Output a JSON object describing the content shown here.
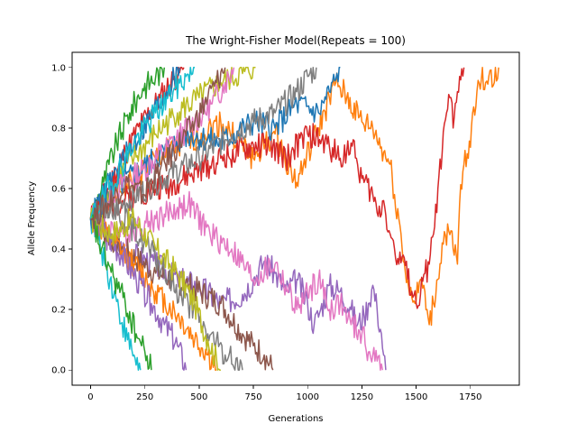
{
  "chart_data": {
    "type": "line",
    "title": "The Wright-Fisher Model(Repeats = 100)",
    "xlabel": "Generations",
    "ylabel": "Allele Frequency",
    "xlim": [
      -85,
      1975
    ],
    "ylim": [
      -0.05,
      1.05
    ],
    "xticks": [
      0,
      250,
      500,
      750,
      1000,
      1250,
      1500,
      1750
    ],
    "yticks": [
      0.0,
      0.2,
      0.4,
      0.6,
      0.8,
      1.0
    ],
    "xtick_labels": [
      "0",
      "250",
      "500",
      "750",
      "1000",
      "1250",
      "1500",
      "1750"
    ],
    "ytick_labels": [
      "0.0",
      "0.2",
      "0.4",
      "0.6",
      "0.8",
      "1.0"
    ],
    "grid": false,
    "legend": "none",
    "palette": [
      "#1f77b4",
      "#ff7f0e",
      "#2ca02c",
      "#d62728",
      "#9467bd",
      "#8c564b",
      "#e377c2",
      "#7f7f7f",
      "#bcbd22",
      "#17becf"
    ],
    "series": [
      {
        "color": "#ff7f0e",
        "values": [
          [
            0,
            0.5
          ],
          [
            150,
            0.6
          ],
          [
            300,
            0.7
          ],
          [
            450,
            0.75
          ],
          [
            600,
            0.82
          ],
          [
            750,
            0.7
          ],
          [
            850,
            0.78
          ],
          [
            950,
            0.62
          ],
          [
            1050,
            0.8
          ],
          [
            1130,
            0.95
          ],
          [
            1180,
            0.9
          ],
          [
            1250,
            0.82
          ],
          [
            1300,
            0.8
          ],
          [
            1350,
            0.72
          ],
          [
            1380,
            0.68
          ],
          [
            1400,
            0.58
          ],
          [
            1420,
            0.5
          ],
          [
            1430,
            0.45
          ],
          [
            1440,
            0.36
          ],
          [
            1460,
            0.3
          ],
          [
            1480,
            0.24
          ],
          [
            1500,
            0.23
          ],
          [
            1520,
            0.3
          ],
          [
            1550,
            0.2
          ],
          [
            1560,
            0.15
          ],
          [
            1580,
            0.22
          ],
          [
            1600,
            0.3
          ],
          [
            1620,
            0.42
          ],
          [
            1650,
            0.46
          ],
          [
            1670,
            0.4
          ],
          [
            1690,
            0.35
          ],
          [
            1700,
            0.55
          ],
          [
            1720,
            0.68
          ],
          [
            1740,
            0.7
          ],
          [
            1760,
            0.85
          ],
          [
            1780,
            0.92
          ],
          [
            1800,
            0.96
          ],
          [
            1820,
            0.95
          ],
          [
            1840,
            0.99
          ],
          [
            1860,
            0.95
          ],
          [
            1880,
            1.0
          ]
        ]
      },
      {
        "color": "#d62728",
        "values": [
          [
            0,
            0.5
          ],
          [
            200,
            0.58
          ],
          [
            400,
            0.62
          ],
          [
            600,
            0.7
          ],
          [
            800,
            0.75
          ],
          [
            900,
            0.7
          ],
          [
            1000,
            0.78
          ],
          [
            1100,
            0.74
          ],
          [
            1150,
            0.7
          ],
          [
            1200,
            0.75
          ],
          [
            1230,
            0.68
          ],
          [
            1260,
            0.62
          ],
          [
            1300,
            0.58
          ],
          [
            1320,
            0.52
          ],
          [
            1350,
            0.56
          ],
          [
            1380,
            0.45
          ],
          [
            1400,
            0.4
          ],
          [
            1420,
            0.35
          ],
          [
            1440,
            0.38
          ],
          [
            1460,
            0.3
          ],
          [
            1480,
            0.26
          ],
          [
            1500,
            0.22
          ],
          [
            1520,
            0.25
          ],
          [
            1540,
            0.32
          ],
          [
            1560,
            0.35
          ],
          [
            1580,
            0.45
          ],
          [
            1600,
            0.6
          ],
          [
            1620,
            0.72
          ],
          [
            1640,
            0.85
          ],
          [
            1660,
            0.9
          ],
          [
            1670,
            0.8
          ],
          [
            1690,
            0.92
          ],
          [
            1700,
            0.97
          ],
          [
            1720,
            1.0
          ]
        ]
      },
      {
        "color": "#9467bd",
        "values": [
          [
            0,
            0.5
          ],
          [
            100,
            0.42
          ],
          [
            200,
            0.38
          ],
          [
            300,
            0.35
          ],
          [
            400,
            0.3
          ],
          [
            500,
            0.28
          ],
          [
            600,
            0.22
          ],
          [
            700,
            0.25
          ],
          [
            750,
            0.3
          ],
          [
            800,
            0.36
          ],
          [
            850,
            0.32
          ],
          [
            900,
            0.26
          ],
          [
            950,
            0.3
          ],
          [
            1000,
            0.22
          ],
          [
            1030,
            0.15
          ],
          [
            1060,
            0.2
          ],
          [
            1100,
            0.28
          ],
          [
            1150,
            0.26
          ],
          [
            1200,
            0.2
          ],
          [
            1230,
            0.15
          ],
          [
            1260,
            0.18
          ],
          [
            1280,
            0.22
          ],
          [
            1300,
            0.28
          ],
          [
            1320,
            0.2
          ],
          [
            1340,
            0.12
          ],
          [
            1350,
            0.05
          ],
          [
            1360,
            0.0
          ]
        ]
      },
      {
        "color": "#e377c2",
        "values": [
          [
            0,
            0.5
          ],
          [
            150,
            0.45
          ],
          [
            300,
            0.5
          ],
          [
            450,
            0.55
          ],
          [
            550,
            0.45
          ],
          [
            650,
            0.4
          ],
          [
            750,
            0.3
          ],
          [
            850,
            0.35
          ],
          [
            950,
            0.2
          ],
          [
            1000,
            0.25
          ],
          [
            1050,
            0.3
          ],
          [
            1100,
            0.2
          ],
          [
            1150,
            0.22
          ],
          [
            1200,
            0.15
          ],
          [
            1250,
            0.12
          ],
          [
            1280,
            0.06
          ],
          [
            1300,
            0.05
          ],
          [
            1320,
            0.03
          ],
          [
            1345,
            0.0
          ]
        ]
      },
      {
        "color": "#1f77b4",
        "values": [
          [
            0,
            0.5
          ],
          [
            150,
            0.62
          ],
          [
            300,
            0.7
          ],
          [
            450,
            0.78
          ],
          [
            600,
            0.75
          ],
          [
            750,
            0.82
          ],
          [
            850,
            0.8
          ],
          [
            950,
            0.88
          ],
          [
            1050,
            0.85
          ],
          [
            1100,
            0.92
          ],
          [
            1130,
            0.96
          ],
          [
            1150,
            1.0
          ]
        ]
      },
      {
        "color": "#7f7f7f",
        "values": [
          [
            0,
            0.5
          ],
          [
            150,
            0.55
          ],
          [
            300,
            0.62
          ],
          [
            500,
            0.7
          ],
          [
            650,
            0.78
          ],
          [
            750,
            0.82
          ],
          [
            850,
            0.85
          ],
          [
            950,
            0.92
          ],
          [
            1000,
            0.97
          ],
          [
            1040,
            1.0
          ]
        ]
      },
      {
        "color": "#8c564b",
        "values": [
          [
            0,
            0.5
          ],
          [
            150,
            0.4
          ],
          [
            300,
            0.32
          ],
          [
            450,
            0.28
          ],
          [
            600,
            0.22
          ],
          [
            700,
            0.12
          ],
          [
            750,
            0.08
          ],
          [
            800,
            0.05
          ],
          [
            840,
            0.0
          ]
        ]
      },
      {
        "color": "#bcbd22",
        "values": [
          [
            0,
            0.5
          ],
          [
            100,
            0.62
          ],
          [
            200,
            0.7
          ],
          [
            300,
            0.78
          ],
          [
            400,
            0.85
          ],
          [
            500,
            0.9
          ],
          [
            600,
            0.95
          ],
          [
            700,
            0.98
          ],
          [
            760,
            1.0
          ]
        ]
      },
      {
        "color": "#2ca02c",
        "values": [
          [
            0,
            0.5
          ],
          [
            60,
            0.62
          ],
          [
            120,
            0.75
          ],
          [
            180,
            0.85
          ],
          [
            240,
            0.93
          ],
          [
            300,
            0.97
          ],
          [
            340,
            1.0
          ]
        ]
      },
      {
        "color": "#17becf",
        "values": [
          [
            0,
            0.5
          ],
          [
            50,
            0.4
          ],
          [
            90,
            0.3
          ],
          [
            130,
            0.2
          ],
          [
            170,
            0.1
          ],
          [
            200,
            0.05
          ],
          [
            230,
            0.0
          ]
        ]
      },
      {
        "color": "#d62728",
        "values": [
          [
            0,
            0.5
          ],
          [
            80,
            0.6
          ],
          [
            160,
            0.72
          ],
          [
            240,
            0.82
          ],
          [
            320,
            0.9
          ],
          [
            380,
            0.96
          ],
          [
            430,
            1.0
          ]
        ]
      },
      {
        "color": "#ff7f0e",
        "values": [
          [
            0,
            0.5
          ],
          [
            100,
            0.42
          ],
          [
            200,
            0.35
          ],
          [
            300,
            0.26
          ],
          [
            400,
            0.18
          ],
          [
            480,
            0.1
          ],
          [
            540,
            0.05
          ],
          [
            580,
            0.0
          ]
        ]
      },
      {
        "color": "#e377c2",
        "values": [
          [
            0,
            0.5
          ],
          [
            120,
            0.6
          ],
          [
            240,
            0.66
          ],
          [
            360,
            0.74
          ],
          [
            480,
            0.82
          ],
          [
            560,
            0.88
          ],
          [
            620,
            0.95
          ],
          [
            660,
            1.0
          ]
        ]
      },
      {
        "color": "#9467bd",
        "values": [
          [
            0,
            0.5
          ],
          [
            70,
            0.45
          ],
          [
            140,
            0.38
          ],
          [
            210,
            0.3
          ],
          [
            280,
            0.22
          ],
          [
            340,
            0.15
          ],
          [
            400,
            0.08
          ],
          [
            440,
            0.0
          ]
        ]
      },
      {
        "color": "#7f7f7f",
        "values": [
          [
            0,
            0.5
          ],
          [
            90,
            0.55
          ],
          [
            180,
            0.48
          ],
          [
            270,
            0.4
          ],
          [
            360,
            0.3
          ],
          [
            450,
            0.22
          ],
          [
            540,
            0.12
          ],
          [
            620,
            0.05
          ],
          [
            700,
            0.0
          ]
        ]
      },
      {
        "color": "#1f77b4",
        "values": [
          [
            0,
            0.5
          ],
          [
            60,
            0.58
          ],
          [
            120,
            0.66
          ],
          [
            200,
            0.75
          ],
          [
            280,
            0.84
          ],
          [
            350,
            0.92
          ],
          [
            410,
            1.0
          ]
        ]
      },
      {
        "color": "#bcbd22",
        "values": [
          [
            0,
            0.5
          ],
          [
            100,
            0.45
          ],
          [
            200,
            0.5
          ],
          [
            300,
            0.4
          ],
          [
            400,
            0.32
          ],
          [
            480,
            0.22
          ],
          [
            540,
            0.1
          ],
          [
            600,
            0.0
          ]
        ]
      },
      {
        "color": "#2ca02c",
        "values": [
          [
            0,
            0.5
          ],
          [
            50,
            0.4
          ],
          [
            110,
            0.3
          ],
          [
            160,
            0.22
          ],
          [
            210,
            0.12
          ],
          [
            250,
            0.06
          ],
          [
            280,
            0.0
          ]
        ]
      },
      {
        "color": "#17becf",
        "values": [
          [
            0,
            0.5
          ],
          [
            100,
            0.62
          ],
          [
            200,
            0.75
          ],
          [
            300,
            0.85
          ],
          [
            380,
            0.92
          ],
          [
            440,
            0.97
          ],
          [
            480,
            1.0
          ]
        ]
      },
      {
        "color": "#8c564b",
        "values": [
          [
            0,
            0.5
          ],
          [
            80,
            0.55
          ],
          [
            160,
            0.62
          ],
          [
            240,
            0.58
          ],
          [
            320,
            0.66
          ],
          [
            400,
            0.74
          ],
          [
            480,
            0.82
          ],
          [
            540,
            0.9
          ],
          [
            580,
            0.95
          ],
          [
            620,
            1.0
          ]
        ]
      }
    ]
  }
}
